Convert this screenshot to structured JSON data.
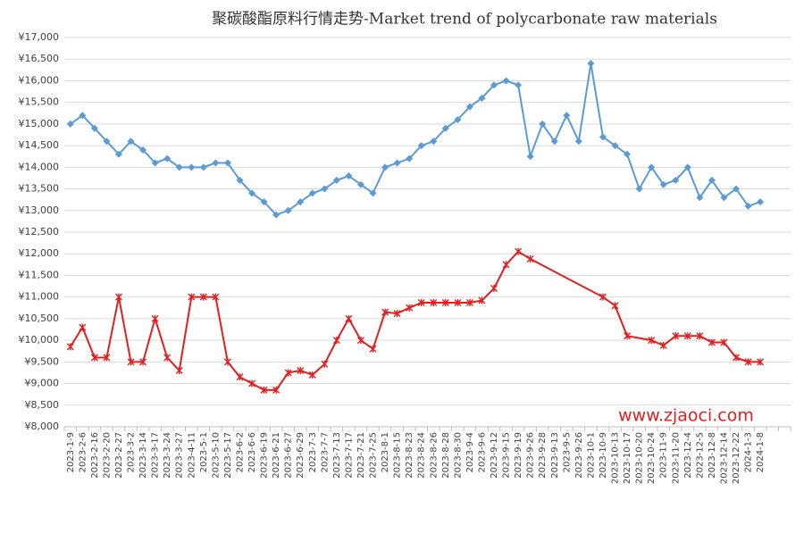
{
  "chart_data": {
    "type": "line",
    "title": "聚碳酸酯原料行情走势-Market trend of polycarbonate raw materials",
    "annotations": [
      "www.zjaoci.com"
    ],
    "categories": [
      "2023-1-9",
      "2023-2-6",
      "2023-2-16",
      "2023-2-20",
      "2023-2-27",
      "2023-3-2",
      "2023-3-14",
      "2023-3-17",
      "2023-3-24",
      "2023-3-27",
      "2023-4-11",
      "2023-5-1",
      "2023-5-10",
      "2023-5-17",
      "2023-6-2",
      "2023-6-6",
      "2023-6-19",
      "2023-6-21",
      "2023-6-27",
      "2023-6-29",
      "2023-7-3",
      "2023-7-7",
      "2023-7-13",
      "2023-7-17",
      "2023-7-21",
      "2023-7-25",
      "2023-8-1",
      "2023-8-15",
      "2023-8-23",
      "2023-8-24",
      "2023-8-26",
      "2023-8-28",
      "2023-8-30",
      "2023-9-4",
      "2023-9-6",
      "2023-9-12",
      "2023-9-15",
      "2023-9-19",
      "2023-9-26",
      "2023-9-28",
      "2023-9-13",
      "2023-9-5",
      "2023-9-26",
      "2023-10-1",
      "2023-10-9",
      "2023-10-13",
      "2023-10-17",
      "2023-10-20",
      "2023-10-24",
      "2023-11-9",
      "2023-11-20",
      "2023-12-4",
      "2023-12-5",
      "2023-12-8",
      "2023-12-14",
      "2023-12-22",
      "2024-1-3",
      "2024-1-8",
      null,
      null
    ],
    "series": [
      {
        "color": "#5b9bd5",
        "marker": "diamond",
        "values": [
          15000,
          15200,
          14900,
          14600,
          14300,
          14600,
          14400,
          14100,
          14200,
          14000,
          14000,
          14000,
          14100,
          14100,
          13700,
          13400,
          13200,
          12900,
          13000,
          13200,
          13400,
          13500,
          13700,
          13800,
          13600,
          13400,
          14000,
          14100,
          14200,
          14500,
          14600,
          14900,
          15100,
          15400,
          15600,
          15900,
          16000,
          15900,
          14250,
          15000,
          14600,
          15200,
          14600,
          16400,
          14700,
          14500,
          14300,
          13500,
          14000,
          13600,
          13700,
          14000,
          13300,
          13700,
          13300,
          13500,
          13100,
          13200,
          null,
          null
        ]
      },
      {
        "color": "#e0201f",
        "marker": "star",
        "values": [
          9850,
          10300,
          9600,
          9600,
          11000,
          9500,
          9500,
          10500,
          9600,
          9300,
          11000,
          11000,
          11000,
          9500,
          9150,
          9000,
          8850,
          8850,
          9250,
          9300,
          9200,
          9450,
          10000,
          10500,
          10000,
          9800,
          10650,
          10620,
          10750,
          10870,
          10870,
          10870,
          10870,
          10870,
          10920,
          11200,
          11750,
          12050,
          11880,
          null,
          null,
          null,
          null,
          null,
          11000,
          10800,
          10100,
          null,
          10000,
          9880,
          10100,
          10100,
          10100,
          9950,
          9950,
          9600,
          9500,
          9500,
          null,
          null
        ]
      }
    ],
    "connect_gaps": true,
    "ylim": [
      8000,
      17000
    ],
    "yticks": [
      {
        "value": 8000,
        "label": "¥8,000"
      },
      {
        "value": 8500,
        "label": "¥8,500"
      },
      {
        "value": 9000,
        "label": "¥9,000"
      },
      {
        "value": 9500,
        "label": "¥9,500"
      },
      {
        "value": 10000,
        "label": "¥10,000"
      },
      {
        "value": 10500,
        "label": "¥10,500"
      },
      {
        "value": 11000,
        "label": "¥11,000"
      },
      {
        "value": 11500,
        "label": "¥11,500"
      },
      {
        "value": 12000,
        "label": "¥12,000"
      },
      {
        "value": 12500,
        "label": "¥12,500"
      },
      {
        "value": 13000,
        "label": "¥13,000"
      },
      {
        "value": 13500,
        "label": "¥13,500"
      },
      {
        "value": 14000,
        "label": "¥14,000"
      },
      {
        "value": 14500,
        "label": "¥14,500"
      },
      {
        "value": 15000,
        "label": "¥15,000"
      },
      {
        "value": 15500,
        "label": "¥15,500"
      },
      {
        "value": 16000,
        "label": "¥16,000"
      },
      {
        "value": 16500,
        "label": "¥16,500"
      },
      {
        "value": 17000,
        "label": "¥17,000"
      }
    ],
    "grid": true
  }
}
